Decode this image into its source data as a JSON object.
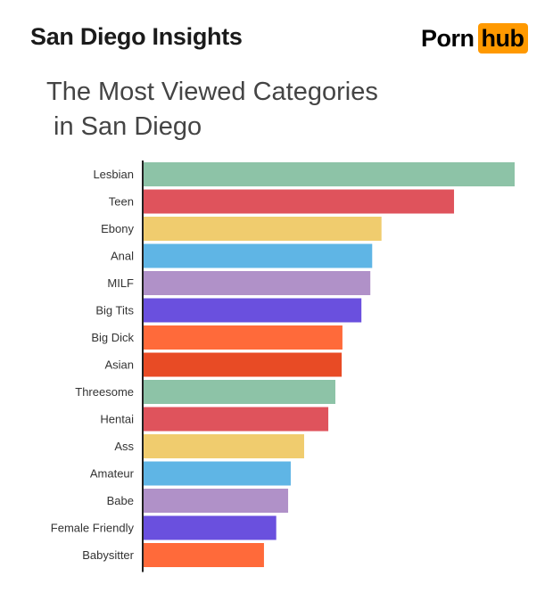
{
  "header": {
    "title": "San Diego Insights",
    "logo": {
      "part1": "Porn",
      "part2": "hub",
      "badge_color": "#ff9900"
    }
  },
  "chart_data": {
    "type": "bar",
    "orientation": "horizontal",
    "title_lines": [
      "The Most Viewed Categories",
      " in San Diego"
    ],
    "categories": [
      "Lesbian",
      "Teen",
      "Ebony",
      "Anal",
      "MILF",
      "Big Tits",
      "Big Dick",
      "Asian",
      "Threesome",
      "Hentai",
      "Ass",
      "Amateur",
      "Babe",
      "Female Friendly",
      "Babysitter"
    ],
    "values": [
      100,
      83.7,
      64.2,
      61.7,
      61.2,
      58.8,
      53.7,
      53.5,
      51.8,
      49.9,
      43.4,
      39.8,
      39.1,
      35.9,
      32.6
    ],
    "colors": [
      "#8dc3a7",
      "#df535c",
      "#f0cc6e",
      "#5fb5e5",
      "#b091c8",
      "#6a50de",
      "#ff6a3a",
      "#e84b25",
      "#8dc3a7",
      "#df535c",
      "#f0cc6e",
      "#5fb5e5",
      "#b091c8",
      "#6a50de",
      "#ff6a3a"
    ],
    "xlim": [
      0,
      100
    ],
    "grid": false,
    "legend": "none"
  }
}
